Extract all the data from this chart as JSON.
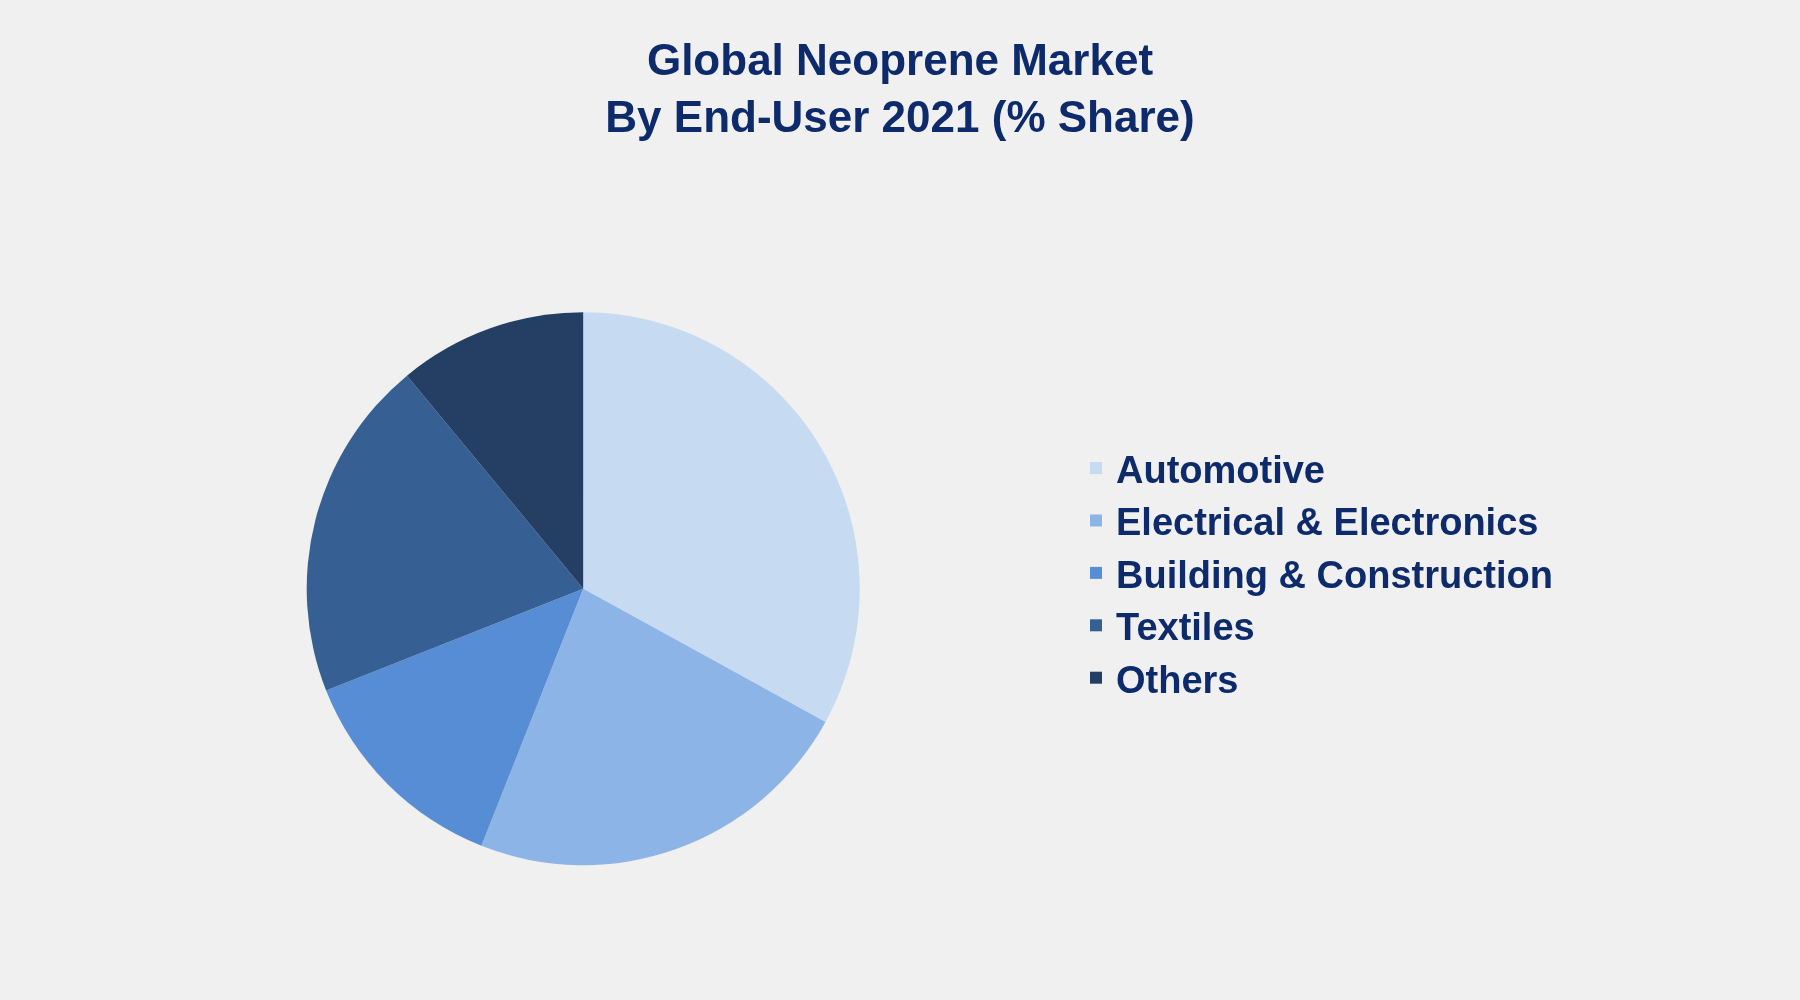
{
  "chart_data": {
    "type": "pie",
    "title": "Global Neoprene Market\nBy End-User 2021 (% Share)",
    "categories": [
      "Automotive",
      "Electrical & Electronics",
      "Building & Construction",
      "Textiles",
      "Others"
    ],
    "values": [
      33,
      23,
      13,
      20,
      11
    ],
    "colors": [
      "#c6daf2",
      "#8db4e6",
      "#568dd4",
      "#365f93",
      "#243f63"
    ],
    "legend": "right"
  }
}
